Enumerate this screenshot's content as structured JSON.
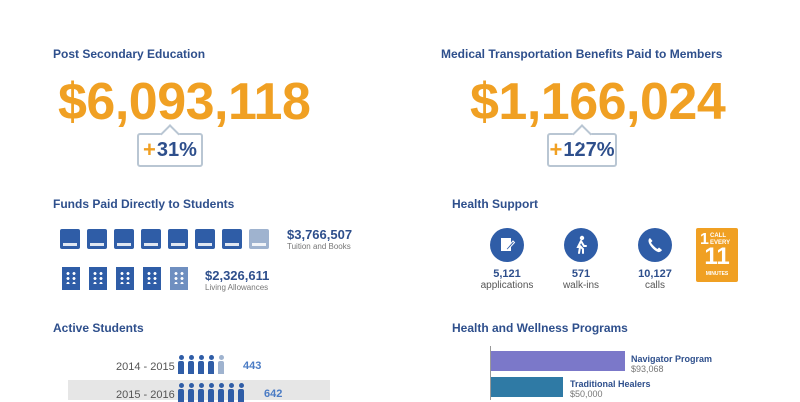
{
  "post_secondary": {
    "title": "Post Secondary Education",
    "amount": "$6,093,118",
    "plus": "+",
    "pct": "31%"
  },
  "medical": {
    "title": "Medical Transportation Benefits Paid to Members",
    "amount": "$1,166,024",
    "plus": "+",
    "pct": "127%"
  },
  "funds": {
    "title": "Funds Paid Directly to Students",
    "tuition": {
      "amount": "$3,766,507",
      "label": "Tuition and Books",
      "icons_full": 7,
      "icons_total": 8
    },
    "living": {
      "amount": "$2,326,611",
      "label": "Living Allowances",
      "icons_full": 4,
      "icons_total": 5
    }
  },
  "health": {
    "title": "Health Support",
    "stats": [
      {
        "value": "5,121",
        "label": "applications",
        "icon": "document-edit-icon"
      },
      {
        "value": "571",
        "label": "walk-ins",
        "icon": "walking-person-icon"
      },
      {
        "value": "10,127",
        "label": "calls",
        "icon": "phone-icon"
      }
    ],
    "badge": {
      "big": "1",
      "line1": "CALL",
      "line2": "EVERY",
      "num": "11",
      "unit": "MINUTES"
    }
  },
  "active": {
    "title": "Active Students",
    "rows": [
      {
        "year": "2014 - 2015",
        "count": "443",
        "icons_full": 4,
        "icons_total": 5
      },
      {
        "year": "2015 - 2016",
        "count": "642",
        "icons_full": 7,
        "icons_total": 7
      }
    ]
  },
  "wellness": {
    "title": "Health and Wellness Programs",
    "programs": [
      {
        "name": "Navigator Program",
        "value": "$93,068",
        "amount": 93068,
        "color": "#7b78c9"
      },
      {
        "name": "Traditional Healers",
        "value": "$50,000",
        "amount": 50000,
        "color": "#2f7aa5"
      }
    ]
  }
}
